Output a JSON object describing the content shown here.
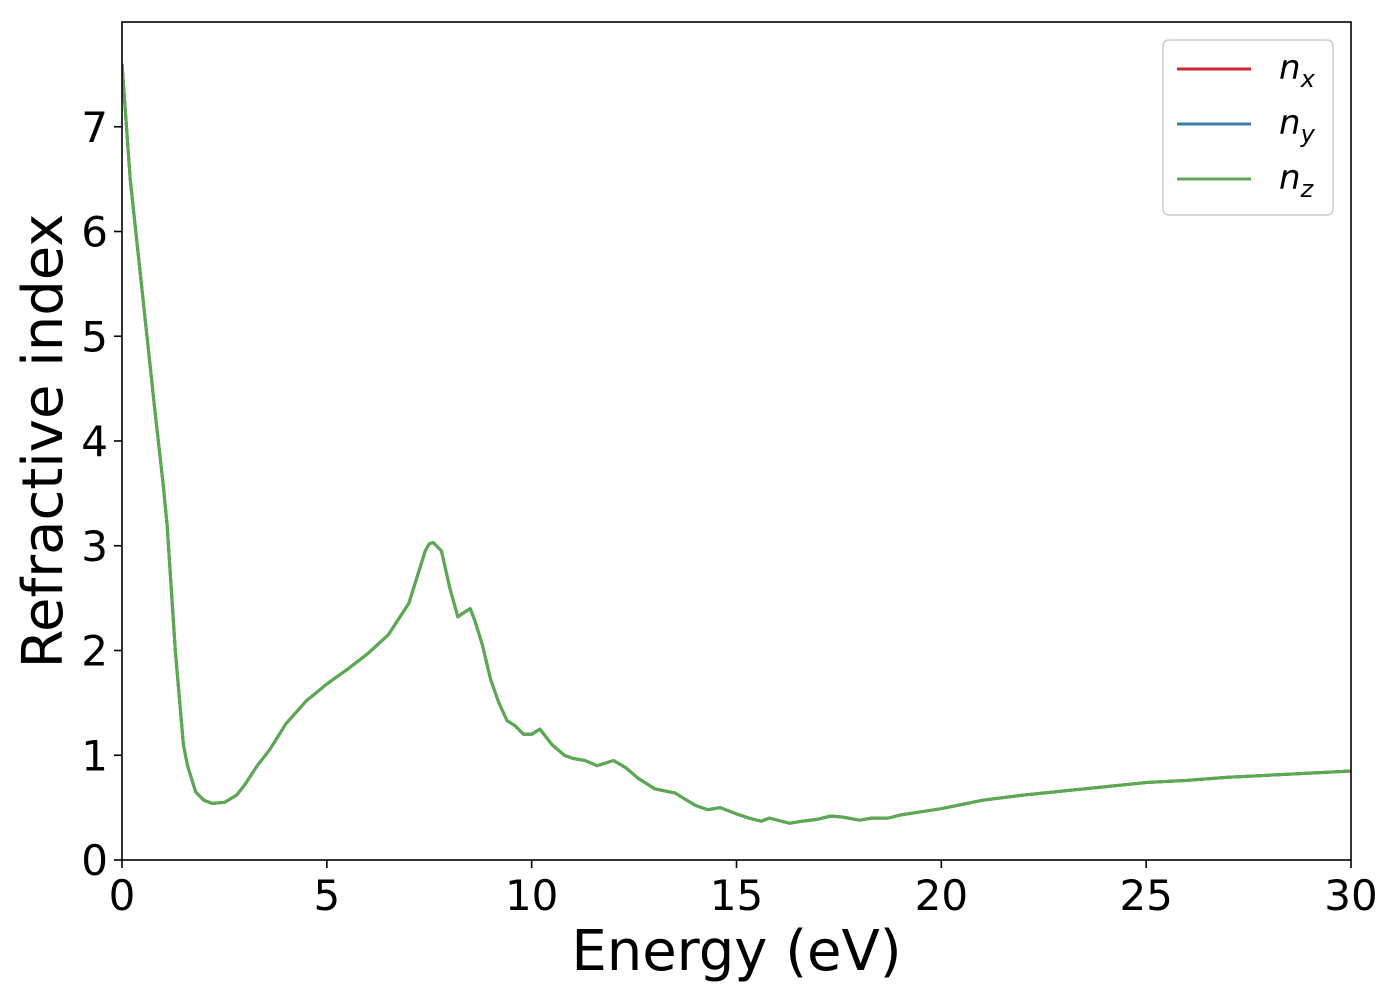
{
  "chart_data": {
    "type": "line",
    "title": "",
    "xlabel": "Energy (eV)",
    "ylabel": "Refractive index",
    "xlim": [
      0,
      30
    ],
    "ylim": [
      0,
      8
    ],
    "xticks": [
      0,
      5,
      10,
      15,
      20,
      25,
      30
    ],
    "yticks": [
      0,
      1,
      2,
      3,
      4,
      5,
      6,
      7
    ],
    "grid": false,
    "legend_position": "top-right",
    "x": [
      0,
      0.2,
      0.5,
      0.8,
      1.0,
      1.1,
      1.3,
      1.5,
      1.6,
      1.8,
      2.0,
      2.2,
      2.5,
      2.8,
      3.0,
      3.3,
      3.6,
      4.0,
      4.5,
      5.0,
      5.5,
      6.0,
      6.5,
      7.0,
      7.2,
      7.4,
      7.5,
      7.6,
      7.8,
      8.0,
      8.2,
      8.3,
      8.5,
      8.6,
      8.8,
      9.0,
      9.2,
      9.4,
      9.6,
      9.8,
      10.0,
      10.2,
      10.5,
      10.8,
      11.0,
      11.3,
      11.6,
      12.0,
      12.3,
      12.6,
      13.0,
      13.5,
      14.0,
      14.3,
      14.6,
      15.0,
      15.3,
      15.6,
      15.8,
      16.0,
      16.3,
      16.6,
      17.0,
      17.3,
      17.6,
      18.0,
      18.3,
      18.7,
      19.0,
      19.5,
      20.0,
      20.5,
      21.0,
      22.0,
      23.0,
      24.0,
      25.0,
      26.0,
      27.0,
      28.0,
      29.0,
      30.0
    ],
    "series": [
      {
        "name": "n_x",
        "label_base": "n",
        "label_sub": "x",
        "color": "#d62728",
        "y": [
          7.6,
          6.5,
          5.4,
          4.3,
          3.6,
          3.2,
          2.0,
          1.1,
          0.9,
          0.65,
          0.57,
          0.54,
          0.55,
          0.62,
          0.72,
          0.9,
          1.05,
          1.3,
          1.52,
          1.68,
          1.82,
          1.97,
          2.15,
          2.45,
          2.7,
          2.95,
          3.02,
          3.03,
          2.95,
          2.6,
          2.32,
          2.35,
          2.4,
          2.3,
          2.05,
          1.72,
          1.5,
          1.33,
          1.28,
          1.2,
          1.2,
          1.25,
          1.1,
          1.0,
          0.97,
          0.95,
          0.9,
          0.95,
          0.88,
          0.78,
          0.68,
          0.64,
          0.52,
          0.48,
          0.5,
          0.44,
          0.4,
          0.37,
          0.4,
          0.38,
          0.35,
          0.37,
          0.39,
          0.42,
          0.41,
          0.38,
          0.4,
          0.4,
          0.43,
          0.46,
          0.49,
          0.53,
          0.57,
          0.62,
          0.66,
          0.7,
          0.74,
          0.76,
          0.79,
          0.81,
          0.83,
          0.85
        ]
      },
      {
        "name": "n_y",
        "label_base": "n",
        "label_sub": "y",
        "color": "#3a7ca5",
        "y": [
          7.6,
          6.5,
          5.4,
          4.3,
          3.6,
          3.2,
          2.0,
          1.1,
          0.9,
          0.65,
          0.57,
          0.54,
          0.55,
          0.62,
          0.72,
          0.9,
          1.05,
          1.3,
          1.52,
          1.68,
          1.82,
          1.97,
          2.15,
          2.45,
          2.7,
          2.95,
          3.02,
          3.03,
          2.95,
          2.6,
          2.32,
          2.35,
          2.4,
          2.3,
          2.05,
          1.72,
          1.5,
          1.33,
          1.28,
          1.2,
          1.2,
          1.25,
          1.1,
          1.0,
          0.97,
          0.95,
          0.9,
          0.95,
          0.88,
          0.78,
          0.68,
          0.64,
          0.52,
          0.48,
          0.5,
          0.44,
          0.4,
          0.37,
          0.4,
          0.38,
          0.35,
          0.37,
          0.39,
          0.42,
          0.41,
          0.38,
          0.4,
          0.4,
          0.43,
          0.46,
          0.49,
          0.53,
          0.57,
          0.62,
          0.66,
          0.7,
          0.74,
          0.76,
          0.79,
          0.81,
          0.83,
          0.85
        ]
      },
      {
        "name": "n_z",
        "label_base": "n",
        "label_sub": "z",
        "color": "#5aab4f",
        "y": [
          7.6,
          6.5,
          5.4,
          4.3,
          3.6,
          3.2,
          2.0,
          1.1,
          0.9,
          0.65,
          0.57,
          0.54,
          0.55,
          0.62,
          0.72,
          0.9,
          1.05,
          1.3,
          1.52,
          1.68,
          1.82,
          1.97,
          2.15,
          2.45,
          2.7,
          2.95,
          3.02,
          3.03,
          2.95,
          2.6,
          2.32,
          2.35,
          2.4,
          2.3,
          2.05,
          1.72,
          1.5,
          1.33,
          1.28,
          1.2,
          1.2,
          1.25,
          1.1,
          1.0,
          0.97,
          0.95,
          0.9,
          0.95,
          0.88,
          0.78,
          0.68,
          0.64,
          0.52,
          0.48,
          0.5,
          0.44,
          0.4,
          0.37,
          0.4,
          0.38,
          0.35,
          0.37,
          0.39,
          0.42,
          0.41,
          0.38,
          0.4,
          0.4,
          0.43,
          0.46,
          0.49,
          0.53,
          0.57,
          0.62,
          0.66,
          0.7,
          0.74,
          0.76,
          0.79,
          0.81,
          0.83,
          0.85
        ]
      }
    ]
  }
}
